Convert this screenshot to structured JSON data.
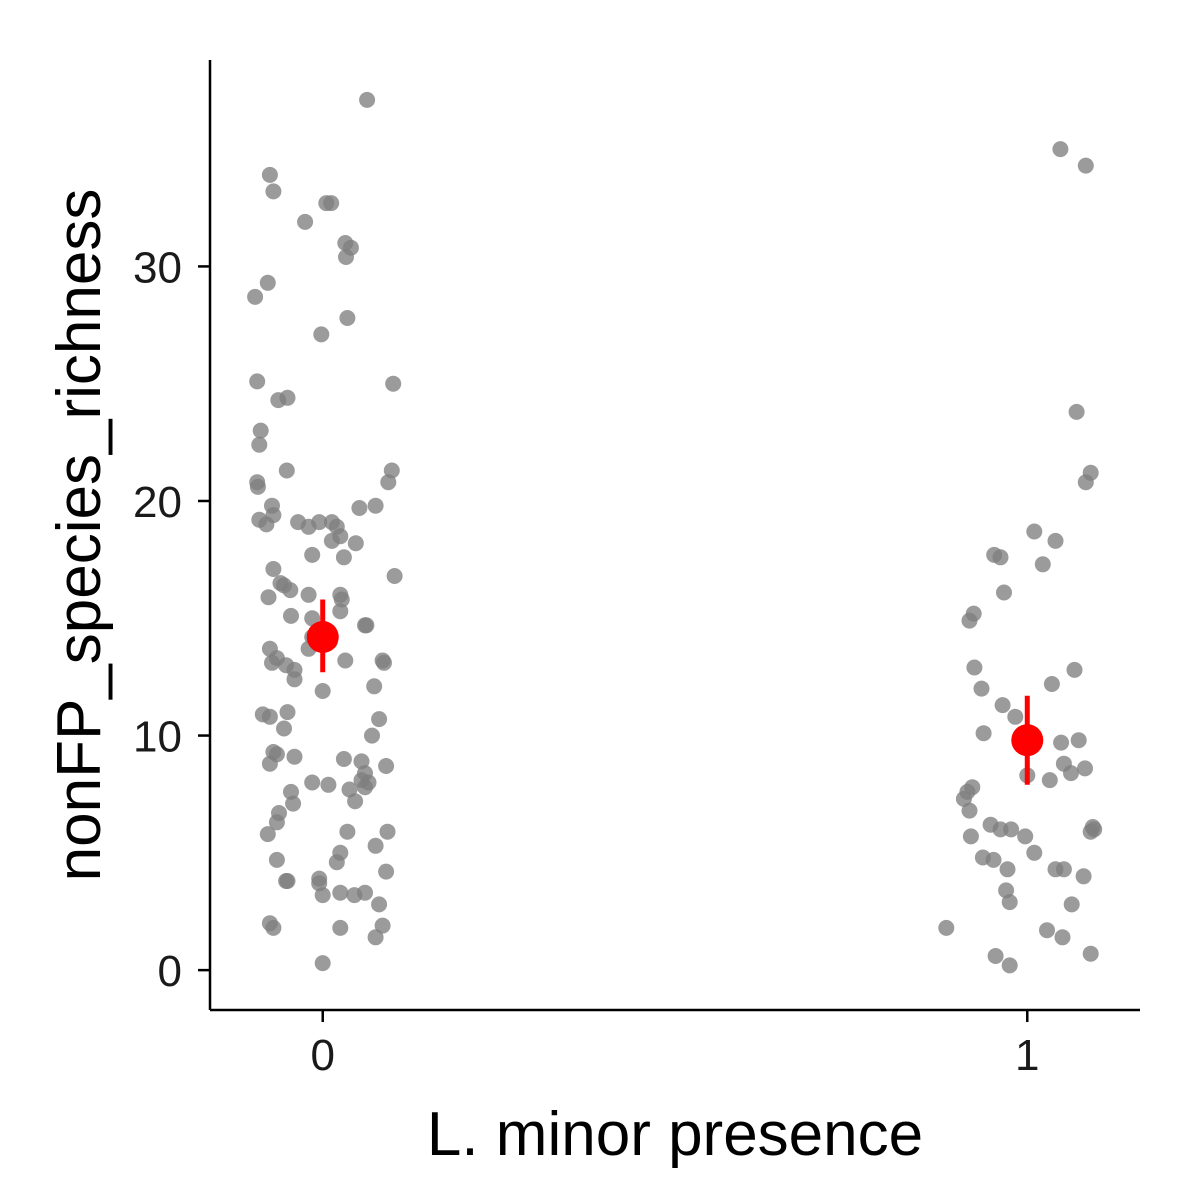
{
  "chart_data": {
    "type": "scatter",
    "title": "",
    "xlabel": "L. minor presence",
    "ylabel": "nonFP_species_richness",
    "x_categories": [
      "0",
      "1"
    ],
    "x_tick_labels": [
      "0",
      "1"
    ],
    "y_ticks": [
      0,
      10,
      20,
      30
    ],
    "ylim": [
      -1.7,
      38.8
    ],
    "xlim": [
      -0.16,
      1.16
    ],
    "grid": false,
    "legend": "none",
    "colors": {
      "points": "#7f7f7f",
      "summary": "#ff0000"
    },
    "series": [
      {
        "group": "0",
        "points": [
          [
            -0.096,
            28.7
          ],
          [
            -0.078,
            29.3
          ],
          [
            -0.075,
            33.9
          ],
          [
            -0.07,
            33.2
          ],
          [
            -0.063,
            24.3
          ],
          [
            -0.05,
            24.4
          ],
          [
            -0.025,
            31.9
          ],
          [
            0.005,
            32.7
          ],
          [
            0.012,
            32.7
          ],
          [
            0.063,
            37.1
          ],
          [
            0.04,
            30.8
          ],
          [
            0.032,
            31.0
          ],
          [
            0.033,
            30.4
          ],
          [
            0.035,
            27.8
          ],
          [
            -0.002,
            27.1
          ],
          [
            -0.093,
            25.1
          ],
          [
            -0.088,
            23.0
          ],
          [
            -0.09,
            22.4
          ],
          [
            -0.093,
            20.8
          ],
          [
            -0.092,
            20.6
          ],
          [
            -0.051,
            21.3
          ],
          [
            0.1,
            25.0
          ],
          [
            0.098,
            21.3
          ],
          [
            0.093,
            20.8
          ],
          [
            0.075,
            19.8
          ],
          [
            0.052,
            19.7
          ],
          [
            -0.09,
            19.2
          ],
          [
            -0.08,
            19.0
          ],
          [
            -0.07,
            19.4
          ],
          [
            -0.072,
            19.8
          ],
          [
            -0.035,
            19.1
          ],
          [
            -0.02,
            18.9
          ],
          [
            -0.005,
            19.1
          ],
          [
            0.013,
            19.1
          ],
          [
            0.02,
            18.9
          ],
          [
            0.025,
            18.5
          ],
          [
            0.013,
            18.3
          ],
          [
            0.047,
            18.2
          ],
          [
            -0.015,
            17.7
          ],
          [
            0.03,
            17.6
          ],
          [
            -0.07,
            17.1
          ],
          [
            -0.06,
            16.5
          ],
          [
            -0.055,
            16.4
          ],
          [
            -0.046,
            16.2
          ],
          [
            -0.077,
            15.9
          ],
          [
            -0.02,
            16.0
          ],
          [
            0.025,
            16.0
          ],
          [
            0.027,
            15.8
          ],
          [
            0.025,
            15.3
          ],
          [
            -0.045,
            15.1
          ],
          [
            -0.015,
            15.0
          ],
          [
            0.06,
            14.7
          ],
          [
            0.062,
            14.7
          ],
          [
            0.102,
            16.8
          ],
          [
            -0.015,
            14.2
          ],
          [
            0.01,
            14.0
          ],
          [
            -0.075,
            13.7
          ],
          [
            -0.072,
            13.1
          ],
          [
            -0.065,
            13.3
          ],
          [
            -0.052,
            13.0
          ],
          [
            -0.04,
            12.8
          ],
          [
            -0.04,
            12.4
          ],
          [
            -0.02,
            13.7
          ],
          [
            0.032,
            13.2
          ],
          [
            0.085,
            13.2
          ],
          [
            0.087,
            13.1
          ],
          [
            0.073,
            12.1
          ],
          [
            0.0,
            11.9
          ],
          [
            -0.085,
            10.9
          ],
          [
            -0.075,
            10.8
          ],
          [
            -0.05,
            11.0
          ],
          [
            -0.055,
            10.3
          ],
          [
            0.08,
            10.7
          ],
          [
            0.07,
            10.0
          ],
          [
            -0.07,
            9.3
          ],
          [
            -0.065,
            9.2
          ],
          [
            -0.04,
            9.1
          ],
          [
            -0.075,
            8.8
          ],
          [
            0.03,
            9.0
          ],
          [
            0.055,
            8.9
          ],
          [
            0.06,
            8.4
          ],
          [
            0.055,
            8.1
          ],
          [
            0.06,
            7.8
          ],
          [
            0.065,
            8.0
          ],
          [
            0.09,
            8.7
          ],
          [
            -0.015,
            8.0
          ],
          [
            0.008,
            7.9
          ],
          [
            0.038,
            7.7
          ],
          [
            0.046,
            7.2
          ],
          [
            -0.045,
            7.6
          ],
          [
            -0.042,
            7.1
          ],
          [
            -0.062,
            6.7
          ],
          [
            -0.065,
            6.3
          ],
          [
            -0.078,
            5.8
          ],
          [
            0.035,
            5.9
          ],
          [
            0.092,
            5.9
          ],
          [
            0.075,
            5.3
          ],
          [
            -0.065,
            4.7
          ],
          [
            0.025,
            5.0
          ],
          [
            0.02,
            4.6
          ],
          [
            0.09,
            4.2
          ],
          [
            -0.005,
            3.9
          ],
          [
            -0.005,
            3.7
          ],
          [
            -0.05,
            3.8
          ],
          [
            -0.052,
            3.8
          ],
          [
            0.0,
            3.2
          ],
          [
            0.025,
            3.3
          ],
          [
            0.045,
            3.2
          ],
          [
            0.06,
            3.3
          ],
          [
            0.08,
            2.8
          ],
          [
            -0.075,
            2.0
          ],
          [
            -0.07,
            1.8
          ],
          [
            0.025,
            1.8
          ],
          [
            0.085,
            1.9
          ],
          [
            0.075,
            1.4
          ],
          [
            0.0,
            0.3
          ]
        ]
      },
      {
        "group": "1",
        "points": [
          [
            1.047,
            35.0
          ],
          [
            1.083,
            34.3
          ],
          [
            1.07,
            23.8
          ],
          [
            1.09,
            21.2
          ],
          [
            1.083,
            20.8
          ],
          [
            1.01,
            18.7
          ],
          [
            1.04,
            18.3
          ],
          [
            1.022,
            17.3
          ],
          [
            0.953,
            17.7
          ],
          [
            0.962,
            17.6
          ],
          [
            0.967,
            16.1
          ],
          [
            0.924,
            15.2
          ],
          [
            0.918,
            14.9
          ],
          [
            1.067,
            12.8
          ],
          [
            1.035,
            12.2
          ],
          [
            0.925,
            12.9
          ],
          [
            0.935,
            12.0
          ],
          [
            0.965,
            11.3
          ],
          [
            0.983,
            10.8
          ],
          [
            0.938,
            10.1
          ],
          [
            1.048,
            9.7
          ],
          [
            1.073,
            9.8
          ],
          [
            1.0,
            8.3
          ],
          [
            1.032,
            8.1
          ],
          [
            1.052,
            8.8
          ],
          [
            1.082,
            8.6
          ],
          [
            1.062,
            8.4
          ],
          [
            0.922,
            7.8
          ],
          [
            0.915,
            7.6
          ],
          [
            0.91,
            7.3
          ],
          [
            0.918,
            6.8
          ],
          [
            0.948,
            6.2
          ],
          [
            0.962,
            6.0
          ],
          [
            0.977,
            6.0
          ],
          [
            0.997,
            5.7
          ],
          [
            1.01,
            5.0
          ],
          [
            0.92,
            5.7
          ],
          [
            1.093,
            6.1
          ],
          [
            1.095,
            6.0
          ],
          [
            1.09,
            5.9
          ],
          [
            0.937,
            4.8
          ],
          [
            0.952,
            4.7
          ],
          [
            0.972,
            4.3
          ],
          [
            1.04,
            4.3
          ],
          [
            1.052,
            4.3
          ],
          [
            1.08,
            4.0
          ],
          [
            0.97,
            3.4
          ],
          [
            0.975,
            2.9
          ],
          [
            1.063,
            2.8
          ],
          [
            0.885,
            1.8
          ],
          [
            1.028,
            1.7
          ],
          [
            1.05,
            1.4
          ],
          [
            1.09,
            0.7
          ],
          [
            0.955,
            0.6
          ],
          [
            0.975,
            0.2
          ]
        ]
      }
    ],
    "summary": [
      {
        "group": "0",
        "mean": 14.2,
        "lower": 12.7,
        "upper": 15.8
      },
      {
        "group": "1",
        "mean": 9.8,
        "lower": 7.9,
        "upper": 11.7
      }
    ]
  }
}
